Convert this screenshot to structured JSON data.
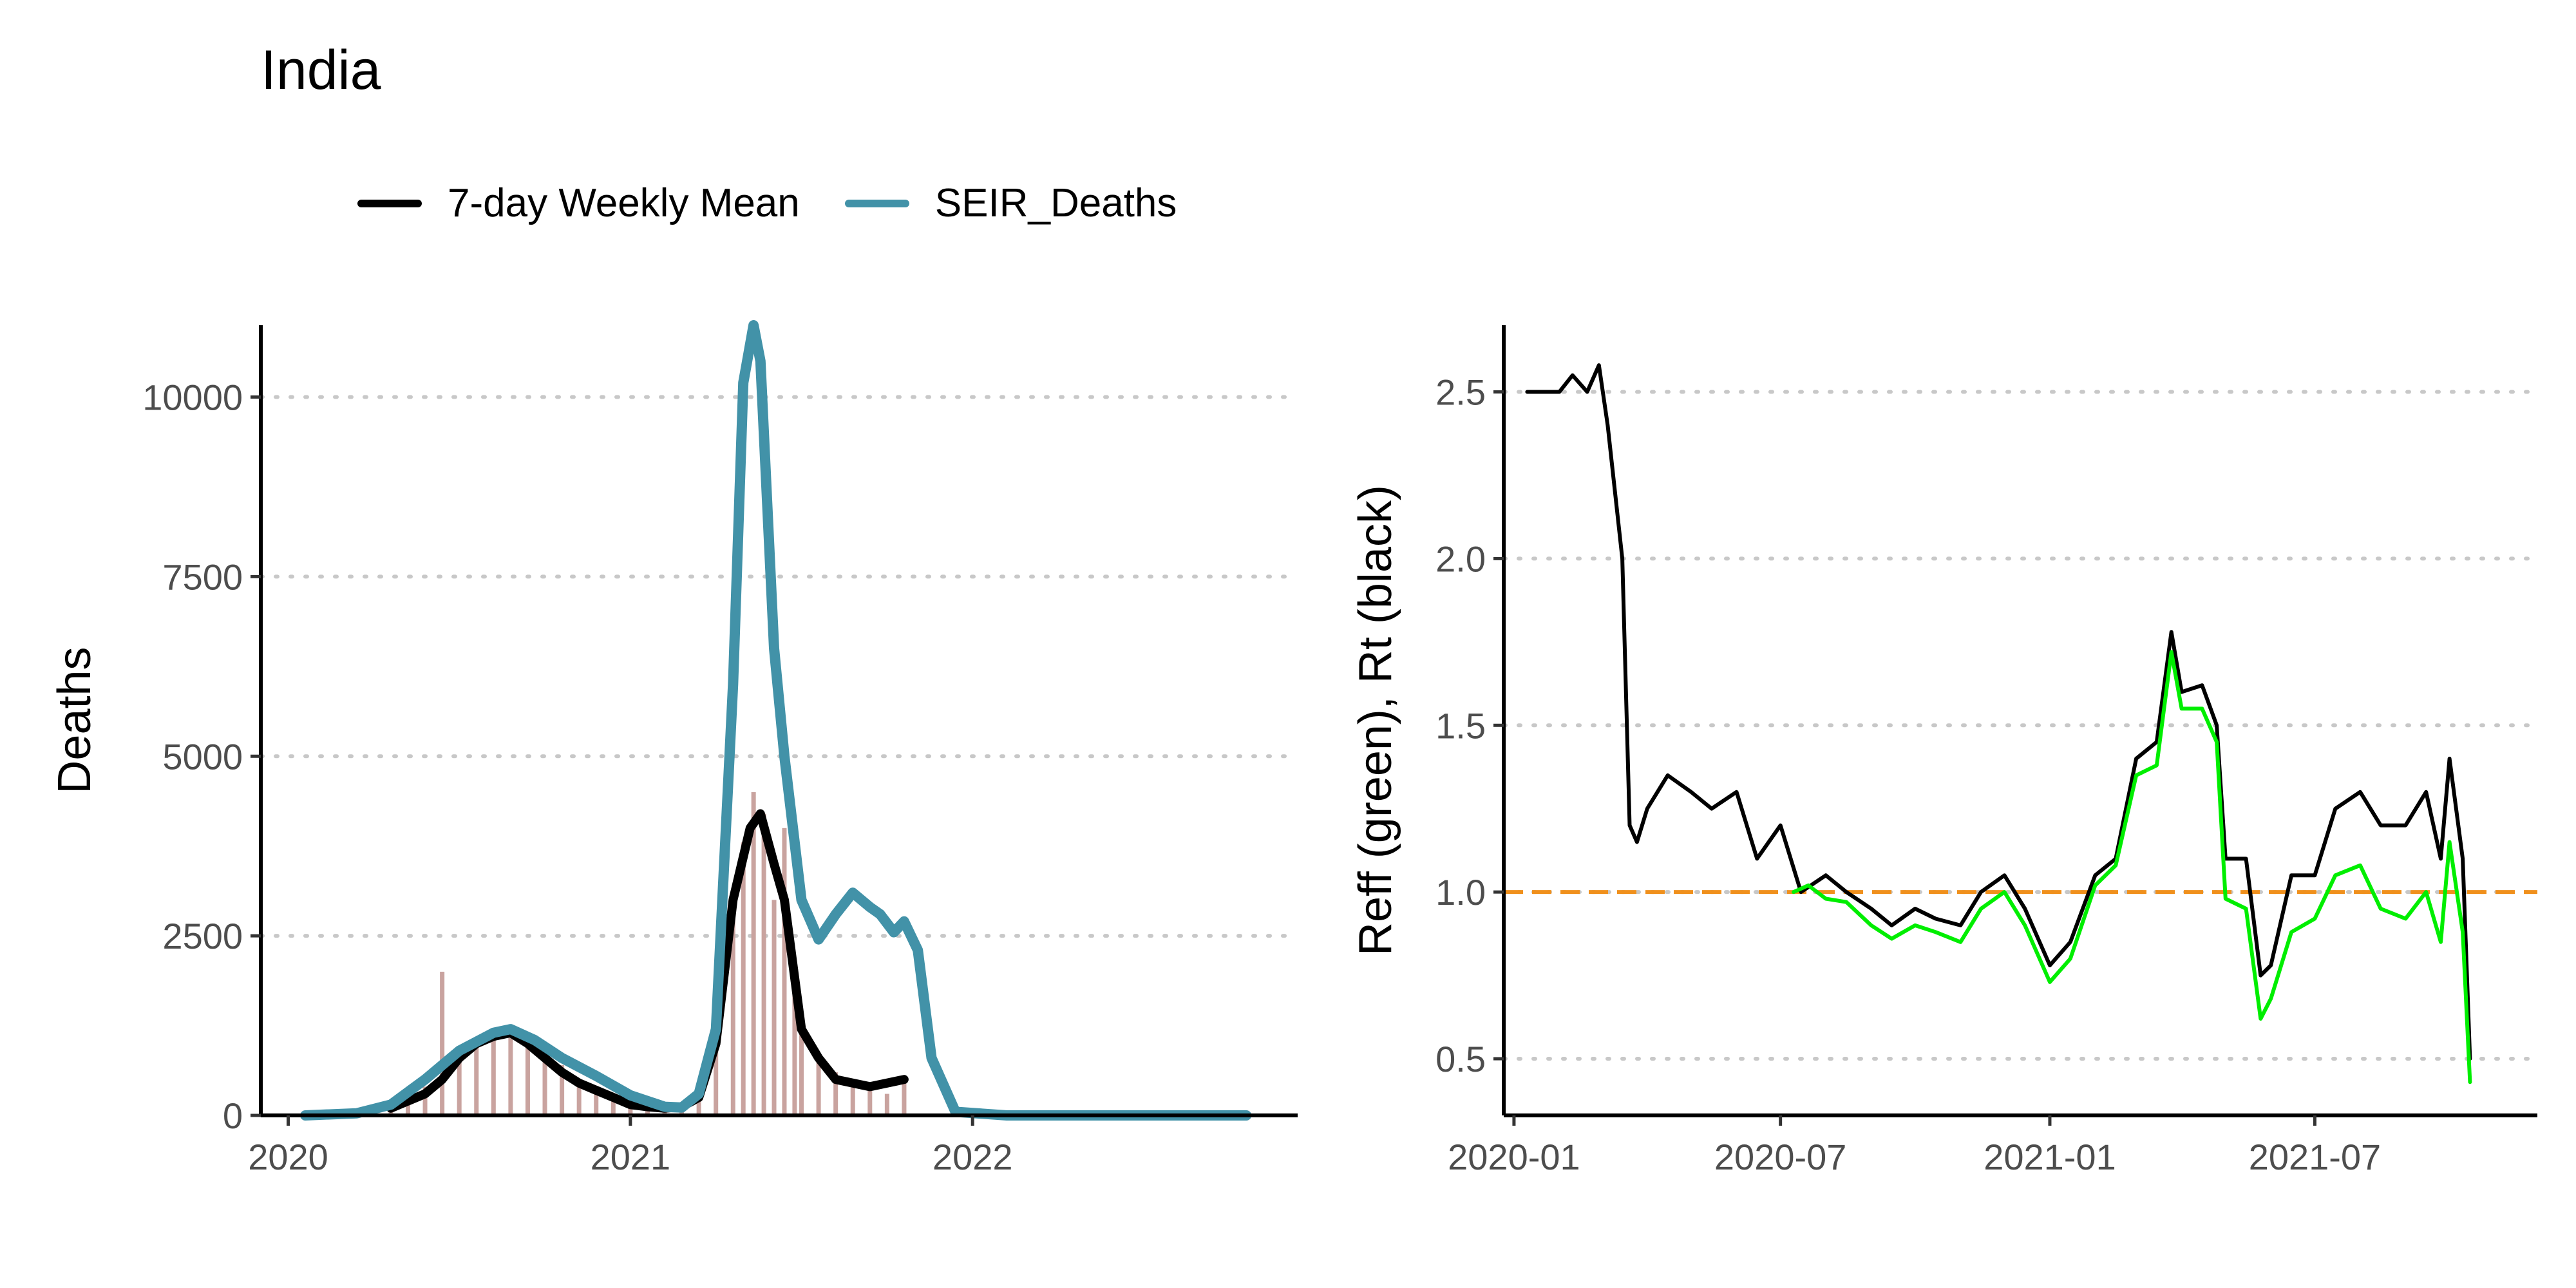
{
  "title": "India",
  "legend": [
    {
      "label": "7-day Weekly Mean",
      "color": "#000000"
    },
    {
      "label": "SEIR_Deaths",
      "color": "#4292a8"
    }
  ],
  "chart_data": [
    {
      "type": "line",
      "ylabel": "Deaths",
      "xlim": [
        2019.92,
        2022.95
      ],
      "ylim": [
        0,
        11000
      ],
      "xticks": [
        2020,
        2021,
        2022
      ],
      "xtick_labels": [
        "2020",
        "2021",
        "2022"
      ],
      "yticks": [
        0,
        2500,
        5000,
        7500,
        10000
      ],
      "ytick_labels": [
        "0",
        "2500",
        "5000",
        "7500",
        "10000"
      ],
      "grid": "horizontal dotted",
      "series": [
        {
          "name": "7-day Weekly Mean",
          "color": "#000000",
          "x": [
            2020.3,
            2020.4,
            2020.45,
            2020.5,
            2020.55,
            2020.6,
            2020.65,
            2020.7,
            2020.75,
            2020.8,
            2020.85,
            2020.9,
            2020.95,
            2021.0,
            2021.05,
            2021.1,
            2021.15,
            2021.2,
            2021.25,
            2021.3,
            2021.35,
            2021.38,
            2021.42,
            2021.45,
            2021.5,
            2021.55,
            2021.6,
            2021.7,
            2021.8
          ],
          "y": [
            100,
            300,
            500,
            800,
            1000,
            1100,
            1150,
            1000,
            800,
            600,
            450,
            350,
            250,
            150,
            120,
            100,
            120,
            250,
            1000,
            3000,
            4000,
            4200,
            3500,
            3000,
            1200,
            800,
            500,
            400,
            500
          ]
        },
        {
          "name": "SEIR_Deaths",
          "color": "#4292a8",
          "x": [
            2020.05,
            2020.2,
            2020.3,
            2020.4,
            2020.5,
            2020.6,
            2020.65,
            2020.72,
            2020.8,
            2020.9,
            2021.0,
            2021.1,
            2021.15,
            2021.2,
            2021.25,
            2021.3,
            2021.33,
            2021.36,
            2021.38,
            2021.42,
            2021.45,
            2021.5,
            2021.55,
            2021.6,
            2021.65,
            2021.7,
            2021.73,
            2021.77,
            2021.8,
            2021.84,
            2021.88,
            2021.95,
            2022.1,
            2022.4,
            2022.8
          ],
          "y": [
            0,
            30,
            150,
            500,
            900,
            1150,
            1200,
            1050,
            800,
            550,
            280,
            120,
            110,
            300,
            1200,
            6000,
            10200,
            11000,
            10500,
            6500,
            5000,
            3000,
            2450,
            2800,
            3100,
            2900,
            2800,
            2550,
            2700,
            2300,
            800,
            50,
            0,
            0,
            0
          ]
        }
      ],
      "daily_bars": {
        "color": "#c9a39f",
        "x": [
          2020.3,
          2020.35,
          2020.4,
          2020.45,
          2020.5,
          2020.55,
          2020.6,
          2020.65,
          2020.7,
          2020.75,
          2020.8,
          2020.85,
          2020.9,
          2020.95,
          2021.0,
          2021.05,
          2021.1,
          2021.15,
          2021.2,
          2021.25,
          2021.3,
          2021.33,
          2021.36,
          2021.39,
          2021.42,
          2021.45,
          2021.48,
          2021.5,
          2021.55,
          2021.6,
          2021.65,
          2021.7,
          2021.75,
          2021.8
        ],
        "y": [
          100,
          250,
          400,
          2000,
          900,
          1000,
          1100,
          1200,
          1000,
          800,
          700,
          500,
          400,
          300,
          200,
          150,
          100,
          120,
          250,
          1000,
          2800,
          3800,
          4500,
          4200,
          3000,
          4000,
          2000,
          1200,
          800,
          600,
          500,
          400,
          300,
          500
        ]
      }
    },
    {
      "type": "line",
      "ylabel": "Reff (green), Rt (black)",
      "xlim": [
        "2019-12-25",
        "2021-11-30"
      ],
      "ylim": [
        0.33,
        2.7
      ],
      "xticks": [
        "2020-01-01",
        "2020-07-01",
        "2021-01-01",
        "2021-07-01"
      ],
      "xtick_labels": [
        "2020-01",
        "2020-07",
        "2021-01",
        "2021-07"
      ],
      "yticks": [
        0.5,
        1.0,
        1.5,
        2.0,
        2.5
      ],
      "ytick_labels": [
        "0.5",
        "1.0",
        "1.5",
        "2.0",
        "2.5"
      ],
      "reference_line": {
        "y": 1.0,
        "color": "#f0901c",
        "style": "dashed"
      },
      "grid": "horizontal dotted",
      "series": [
        {
          "name": "Rt",
          "color": "#000000",
          "x": [
            "2020-01-10",
            "2020-02-01",
            "2020-02-10",
            "2020-02-20",
            "2020-02-28",
            "2020-03-05",
            "2020-03-15",
            "2020-03-20",
            "2020-03-25",
            "2020-04-01",
            "2020-04-15",
            "2020-05-01",
            "2020-05-15",
            "2020-06-01",
            "2020-06-15",
            "2020-07-01",
            "2020-07-15",
            "2020-08-01",
            "2020-08-15",
            "2020-09-01",
            "2020-09-15",
            "2020-10-01",
            "2020-10-15",
            "2020-11-01",
            "2020-11-15",
            "2020-12-01",
            "2020-12-15",
            "2021-01-01",
            "2021-01-15",
            "2021-02-01",
            "2021-02-15",
            "2021-03-01",
            "2021-03-15",
            "2021-03-25",
            "2021-04-01",
            "2021-04-15",
            "2021-04-25",
            "2021-05-01",
            "2021-05-15",
            "2021-05-25",
            "2021-06-01",
            "2021-06-15",
            "2021-07-01",
            "2021-07-15",
            "2021-08-01",
            "2021-08-15",
            "2021-09-01",
            "2021-09-15",
            "2021-09-25",
            "2021-10-01",
            "2021-10-10",
            "2021-10-15"
          ],
          "y": [
            2.5,
            2.5,
            2.55,
            2.5,
            2.58,
            2.4,
            2.0,
            1.2,
            1.15,
            1.25,
            1.35,
            1.3,
            1.25,
            1.3,
            1.1,
            1.2,
            1.0,
            1.05,
            1.0,
            0.95,
            0.9,
            0.95,
            0.92,
            0.9,
            1.0,
            1.05,
            0.95,
            0.78,
            0.85,
            1.05,
            1.1,
            1.4,
            1.45,
            1.78,
            1.6,
            1.62,
            1.5,
            1.1,
            1.1,
            0.75,
            0.78,
            1.05,
            1.05,
            1.25,
            1.3,
            1.2,
            1.2,
            1.3,
            1.1,
            1.4,
            1.1,
            0.5
          ]
        },
        {
          "name": "Reff",
          "color": "#00ee00",
          "x": [
            "2020-07-10",
            "2020-07-20",
            "2020-08-01",
            "2020-08-15",
            "2020-09-01",
            "2020-09-15",
            "2020-10-01",
            "2020-10-15",
            "2020-11-01",
            "2020-11-15",
            "2020-12-01",
            "2020-12-15",
            "2021-01-01",
            "2021-01-15",
            "2021-02-01",
            "2021-02-15",
            "2021-03-01",
            "2021-03-15",
            "2021-03-25",
            "2021-04-01",
            "2021-04-15",
            "2021-04-25",
            "2021-05-01",
            "2021-05-15",
            "2021-05-25",
            "2021-06-01",
            "2021-06-15",
            "2021-07-01",
            "2021-07-15",
            "2021-08-01",
            "2021-08-15",
            "2021-09-01",
            "2021-09-15",
            "2021-09-25",
            "2021-10-01",
            "2021-10-10",
            "2021-10-15"
          ],
          "y": [
            1.0,
            1.02,
            0.98,
            0.97,
            0.9,
            0.86,
            0.9,
            0.88,
            0.85,
            0.95,
            1.0,
            0.9,
            0.73,
            0.8,
            1.02,
            1.08,
            1.35,
            1.38,
            1.72,
            1.55,
            1.55,
            1.45,
            0.98,
            0.95,
            0.62,
            0.68,
            0.88,
            0.92,
            1.05,
            1.08,
            0.95,
            0.92,
            1.0,
            0.85,
            1.15,
            0.88,
            0.43
          ]
        }
      ]
    }
  ]
}
